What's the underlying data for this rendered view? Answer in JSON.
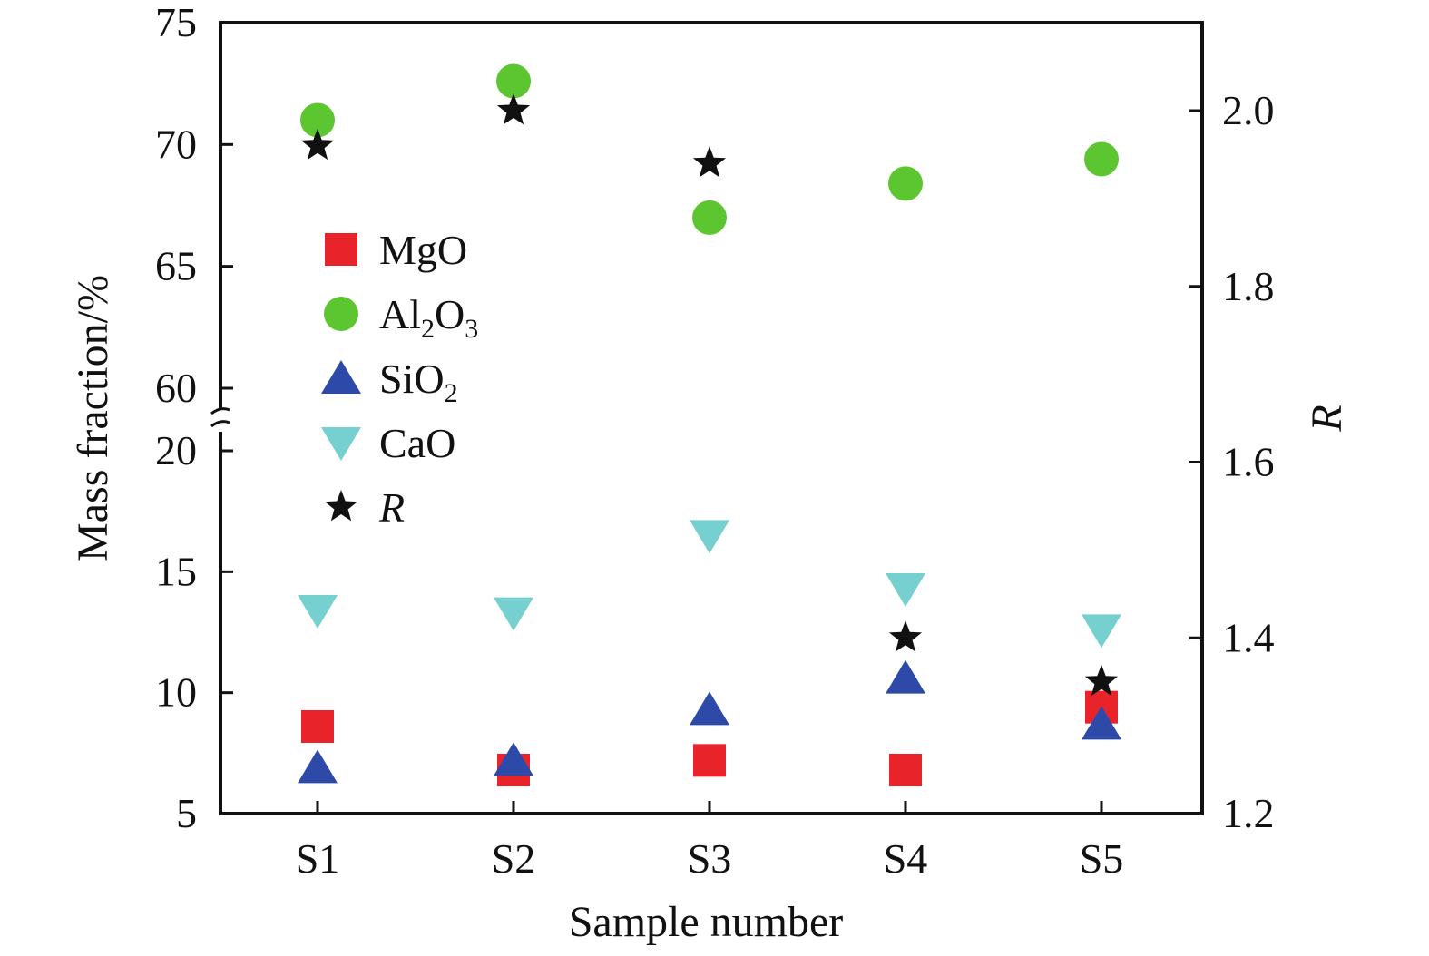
{
  "chart_data": {
    "type": "scatter",
    "xlabel": "Sample number",
    "ylabel_left": "Mass fraction/%",
    "ylabel_right": "R",
    "categories": [
      "S1",
      "S2",
      "S3",
      "S4",
      "S5"
    ],
    "left_axis": {
      "ylim": [
        5,
        75
      ],
      "break_between": [
        20,
        60
      ],
      "ticks": [
        "5",
        "10",
        "15",
        "20",
        "60",
        "65",
        "70",
        "75"
      ]
    },
    "right_axis": {
      "ylim": [
        1.2,
        2.1
      ],
      "ticks": [
        "1.2",
        "1.4",
        "1.6",
        "1.8",
        "2.0"
      ]
    },
    "series": [
      {
        "name": "MgO",
        "axis": "left",
        "marker": "square",
        "color": "#e8242a",
        "values": [
          8.6,
          6.8,
          7.2,
          6.8,
          9.4
        ]
      },
      {
        "name": "Al2O3",
        "axis": "left",
        "marker": "circle",
        "color": "#5cc631",
        "values": [
          71.0,
          72.6,
          67.0,
          68.4,
          69.4
        ]
      },
      {
        "name": "SiO2",
        "axis": "left",
        "marker": "triangle-up",
        "color": "#2e4aa8",
        "values": [
          6.9,
          7.2,
          9.3,
          10.6,
          8.7
        ]
      },
      {
        "name": "CaO",
        "axis": "left",
        "marker": "triangle-down",
        "color": "#76d0cf",
        "values": [
          13.4,
          13.3,
          16.5,
          14.3,
          12.6
        ]
      },
      {
        "name": "R",
        "axis": "right",
        "marker": "star",
        "color": "#111111",
        "values": [
          1.96,
          2.0,
          1.94,
          1.4,
          1.35
        ]
      }
    ],
    "legend_position": "left-middle",
    "grid": false
  }
}
